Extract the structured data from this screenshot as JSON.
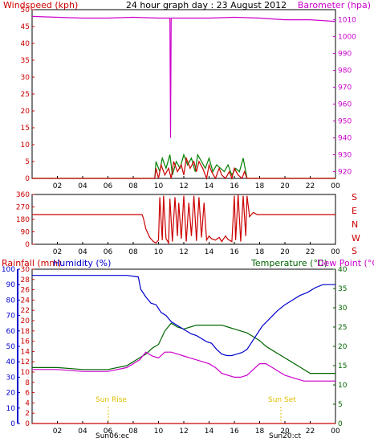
{
  "colors": {
    "wind": "#cc0000",
    "gust": "#008000",
    "baro": "#cc00cc",
    "dir": "#cc0000",
    "rain": "#cc0000",
    "humidity": "#0000cc",
    "temperature": "#006600",
    "dewpoint": "#cc00cc",
    "sun": "#e0c000",
    "frame": "#000000"
  },
  "header": {
    "left": "Windspeed (kph)",
    "center": "24 hour graph day : 23 August 2012",
    "right": "Barometer (hpa)"
  },
  "middle": {
    "compass": [
      "S",
      "E",
      "N",
      "W",
      "S"
    ]
  },
  "bottom_header": {
    "rain": "Rainfall (mm)",
    "humidity": "Humidity (%)",
    "temperature": "Temperature (°C)",
    "dewpoint": "Dew Point (°C)"
  },
  "annotations": {
    "sunrise": "Sun Rise",
    "sunset": "Sun Set",
    "sunrise_time": "Sun06:ec",
    "sunset_time": "Sun20:ct"
  },
  "chart_data": [
    {
      "type": "line",
      "title": "24 hour graph day : 23 August 2012",
      "x_ticks": [
        "02",
        "04",
        "06",
        "08",
        "10",
        "12",
        "14",
        "16",
        "18",
        "20",
        "22",
        "00"
      ],
      "xlim": [
        0,
        24
      ],
      "y_left": {
        "label": "Windspeed (kph)",
        "lim": [
          0,
          50
        ],
        "ticks": [
          0,
          5,
          10,
          15,
          20,
          25,
          30,
          35,
          40,
          45,
          50
        ]
      },
      "y_right": {
        "label": "Barometer (hpa)",
        "lim": [
          916,
          1016
        ],
        "ticks": [
          920,
          930,
          940,
          950,
          960,
          970,
          980,
          990,
          1000,
          1010
        ]
      },
      "series": [
        {
          "name": "Windspeed (kph)",
          "axis": "left",
          "color": "#cc0000",
          "x": [
            0,
            9.7,
            9.8,
            10.0,
            10.2,
            10.5,
            10.8,
            11.0,
            11.2,
            11.5,
            11.8,
            12.0,
            12.2,
            12.5,
            12.8,
            13.0,
            13.2,
            13.5,
            13.8,
            14.0,
            14.2,
            14.5,
            14.8,
            15.0,
            15.3,
            15.6,
            15.8,
            16.0,
            16.3,
            16.6,
            16.8,
            17.0,
            24
          ],
          "y": [
            0,
            0,
            3,
            0,
            4,
            1,
            3,
            0,
            5,
            2,
            4,
            1,
            6,
            3,
            5,
            2,
            5,
            3,
            0,
            4,
            2,
            0,
            3,
            1,
            0,
            2,
            0,
            3,
            1,
            0,
            2,
            0,
            0
          ]
        },
        {
          "name": "Gust (kph)",
          "axis": "left",
          "color": "#008000",
          "x": [
            0,
            9.7,
            9.8,
            10.1,
            10.3,
            10.6,
            10.9,
            11.1,
            11.4,
            11.7,
            12.0,
            12.3,
            12.6,
            12.9,
            13.1,
            13.4,
            13.7,
            14.0,
            14.3,
            14.6,
            14.9,
            15.2,
            15.5,
            15.8,
            16.1,
            16.4,
            16.7,
            17.0,
            24
          ],
          "y": [
            0,
            0,
            5,
            2,
            6,
            3,
            7,
            1,
            5,
            3,
            7,
            4,
            6,
            2,
            7,
            5,
            3,
            6,
            2,
            4,
            3,
            2,
            4,
            1,
            3,
            2,
            6,
            0,
            0
          ]
        },
        {
          "name": "Barometer (hpa)",
          "axis": "right",
          "color": "#cc00cc",
          "x": [
            0,
            2,
            4,
            6,
            8,
            10,
            10.9,
            10.95,
            11.0,
            12,
            14,
            16,
            18,
            20,
            22,
            24
          ],
          "y": [
            1012,
            1011.5,
            1011,
            1011,
            1011.5,
            1011,
            1011,
            940,
            1011,
            1011,
            1011,
            1011.5,
            1011,
            1010,
            1010,
            1009
          ]
        }
      ]
    },
    {
      "type": "line",
      "title": "",
      "x_ticks": [
        "02",
        "04",
        "06",
        "08",
        "10",
        "12",
        "14",
        "16",
        "18",
        "20",
        "22",
        "00"
      ],
      "xlim": [
        0,
        24
      ],
      "y_left": {
        "label": "",
        "lim": [
          0,
          360
        ],
        "ticks": [
          0,
          90,
          180,
          270,
          360
        ]
      },
      "series": [
        {
          "name": "Wind direction",
          "axis": "left",
          "color": "#cc0000",
          "x": [
            0,
            8.7,
            8.8,
            9.0,
            9.3,
            9.6,
            9.8,
            10.0,
            10.1,
            10.3,
            10.4,
            10.6,
            10.8,
            10.9,
            11.1,
            11.3,
            11.5,
            11.6,
            11.8,
            12.0,
            12.2,
            12.4,
            12.6,
            12.8,
            13.0,
            13.2,
            13.4,
            13.6,
            13.8,
            14.0,
            14.2,
            14.5,
            14.8,
            15.0,
            15.3,
            15.5,
            15.8,
            16.0,
            16.1,
            16.3,
            16.5,
            16.7,
            16.9,
            17.0,
            17.2,
            17.5,
            17.8,
            24
          ],
          "y": [
            215,
            215,
            190,
            110,
            50,
            20,
            10,
            30,
            340,
            30,
            350,
            40,
            10,
            330,
            20,
            340,
            60,
            300,
            40,
            350,
            20,
            300,
            60,
            350,
            25,
            340,
            50,
            300,
            30,
            60,
            40,
            30,
            50,
            20,
            60,
            35,
            20,
            350,
            30,
            360,
            20,
            350,
            60,
            350,
            200,
            230,
            215,
            215
          ]
        }
      ]
    },
    {
      "type": "line",
      "title": "",
      "x_ticks": [
        "02",
        "04",
        "06",
        "08",
        "10",
        "12",
        "14",
        "16",
        "18",
        "20",
        "22",
        "00"
      ],
      "xlim": [
        0,
        24
      ],
      "y_rain": {
        "label": "Rainfall (mm)",
        "lim": [
          0,
          30
        ],
        "ticks": [
          0,
          2,
          4,
          6,
          8,
          10,
          12,
          14,
          16,
          18,
          20,
          22,
          24,
          26,
          28,
          30
        ]
      },
      "y_humidity": {
        "label": "Humidity (%)",
        "lim": [
          0,
          100
        ],
        "ticks": [
          0,
          10,
          20,
          30,
          40,
          50,
          60,
          70,
          80,
          90,
          100
        ]
      },
      "y_right": {
        "label": "Temperature (°C)",
        "lim": [
          0,
          40
        ],
        "ticks": [
          0,
          5,
          10,
          15,
          20,
          25,
          30,
          35,
          40
        ]
      },
      "series": [
        {
          "name": "Rainfall (mm)",
          "axis": "rain",
          "color": "#cc0000",
          "x": [
            0,
            24
          ],
          "y": [
            0,
            0
          ]
        },
        {
          "name": "Humidity (%)",
          "axis": "humidity",
          "color": "#0000cc",
          "x": [
            0,
            2,
            4,
            6,
            7.5,
            8.4,
            8.6,
            9.0,
            9.4,
            9.8,
            10.2,
            10.6,
            11.0,
            11.4,
            11.8,
            12.2,
            12.6,
            13.0,
            13.4,
            13.8,
            14.2,
            14.6,
            15.0,
            15.4,
            15.8,
            16.2,
            16.6,
            17.0,
            17.4,
            17.8,
            18.2,
            18.8,
            19.4,
            20.0,
            20.6,
            21.2,
            21.8,
            22.4,
            23.0,
            24
          ],
          "y": [
            96,
            96,
            96,
            96,
            96,
            95,
            87,
            82,
            78,
            77,
            72,
            70,
            66,
            64,
            62,
            60,
            58,
            57,
            55,
            53,
            52,
            48,
            45,
            44,
            44,
            45,
            46,
            48,
            53,
            58,
            63,
            68,
            73,
            77,
            80,
            83,
            85,
            88,
            90,
            90
          ]
        },
        {
          "name": "Temperature (°C)",
          "axis": "right",
          "color": "#006600",
          "x": [
            0,
            2,
            4,
            6,
            7.5,
            8.0,
            8.5,
            9.0,
            9.5,
            10.0,
            10.5,
            11.0,
            11.5,
            12.0,
            12.5,
            13.0,
            13.5,
            14.0,
            14.5,
            15.0,
            15.5,
            16.0,
            16.5,
            17.0,
            17.5,
            18.0,
            18.5,
            19.0,
            19.5,
            20.0,
            20.5,
            21.0,
            21.5,
            22.0,
            23.0,
            24
          ],
          "y": [
            14.5,
            14.5,
            14,
            14,
            15,
            16,
            17,
            18,
            19.5,
            20.5,
            24,
            26,
            25,
            24.5,
            25,
            25.5,
            25.5,
            25.5,
            25.5,
            25.5,
            25,
            24.5,
            24,
            23.5,
            22.5,
            21.5,
            20,
            19,
            18,
            17,
            16,
            15,
            14,
            13,
            13,
            13
          ]
        },
        {
          "name": "Dew Point (°C)",
          "axis": "right",
          "color": "#cc00cc",
          "x": [
            0,
            2,
            4,
            6,
            7.5,
            8.0,
            8.5,
            9.0,
            9.5,
            10.0,
            10.5,
            11.0,
            11.5,
            12.0,
            12.5,
            13.0,
            13.5,
            14.0,
            14.5,
            15.0,
            15.5,
            16.0,
            16.5,
            17.0,
            17.5,
            18.0,
            18.5,
            19.0,
            19.5,
            20.0,
            20.5,
            21.0,
            21.5,
            22.0,
            23.0,
            24
          ],
          "y": [
            14,
            14,
            13.5,
            13.5,
            14.5,
            15.5,
            16.5,
            18.5,
            17.5,
            17,
            18.5,
            18.5,
            18,
            17.5,
            17,
            16.5,
            16,
            15.5,
            14.5,
            13,
            12.5,
            12,
            12,
            12.5,
            14,
            15.5,
            15.5,
            14.5,
            13.5,
            12.5,
            12,
            11.5,
            11,
            11,
            11,
            11
          ]
        }
      ]
    }
  ]
}
